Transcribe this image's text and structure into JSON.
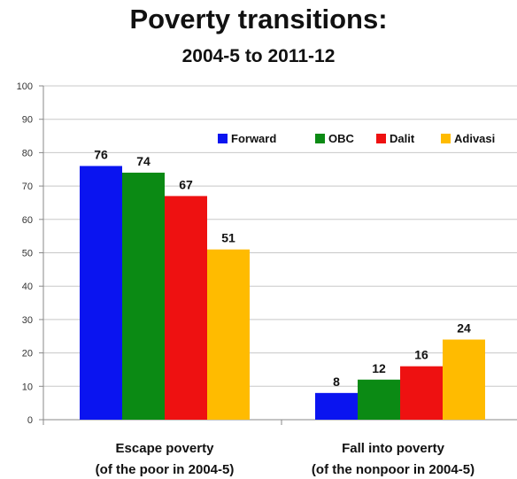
{
  "chart_data": {
    "type": "bar",
    "title": "Poverty transitions:",
    "subtitle": "2004-5 to 2011-12",
    "categories": [
      [
        "Escape poverty",
        "(of the poor in 2004-5)"
      ],
      [
        "Fall into poverty",
        "(of the nonpoor in 2004-5)"
      ]
    ],
    "series": [
      {
        "name": "Forward",
        "color": "#0a14f0",
        "values": [
          76,
          8
        ]
      },
      {
        "name": "OBC",
        "color": "#0b8a14",
        "values": [
          74,
          12
        ]
      },
      {
        "name": "Dalit",
        "color": "#ee1111",
        "values": [
          67,
          16
        ]
      },
      {
        "name": "Adivasi",
        "color": "#ffbb00",
        "values": [
          51,
          24
        ]
      }
    ],
    "ylim": [
      0,
      100
    ],
    "yticks": [
      0,
      10,
      20,
      30,
      40,
      50,
      60,
      70,
      80,
      90,
      100
    ],
    "grid": true,
    "legend": "top-right"
  }
}
